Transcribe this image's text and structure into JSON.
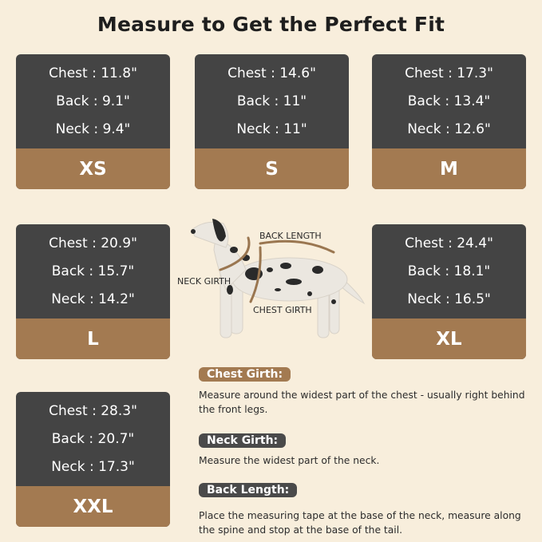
{
  "title": "Measure to Get the Perfect Fit",
  "sizes": [
    {
      "size": "XS",
      "chest": "Chest : 11.8\"",
      "back": "Back : 9.1\"",
      "neck": "Neck : 9.4\""
    },
    {
      "size": "S",
      "chest": "Chest : 14.6\"",
      "back": "Back : 11\"",
      "neck": "Neck : 11\""
    },
    {
      "size": "M",
      "chest": "Chest : 17.3\"",
      "back": "Back : 13.4\"",
      "neck": "Neck : 12.6\""
    },
    {
      "size": "L",
      "chest": "Chest : 20.9\"",
      "back": "Back : 15.7\"",
      "neck": "Neck : 14.2\""
    },
    {
      "size": "XL",
      "chest": "Chest : 24.4\"",
      "back": "Back : 18.1\"",
      "neck": "Neck : 16.5\""
    },
    {
      "size": "XXL",
      "chest": "Chest : 28.3\"",
      "back": "Back : 20.7\"",
      "neck": "Neck : 17.3\""
    }
  ],
  "diagram": {
    "back_length": "BACK LENGTH",
    "neck_girth": "NECK GIRTH",
    "chest_girth": "CHEST GIRTH"
  },
  "instructions": [
    {
      "label": "Chest Girth:",
      "text": "Measure around the widest part of the chest - usually right behind the front legs.",
      "color": "#a37a51"
    },
    {
      "label": "Neck Girth:",
      "text": "Measure the widest part of the neck.",
      "color": "#4a4a4a"
    },
    {
      "label": "Back Length:",
      "text": "Place the measuring tape at the base of the neck, measure along the spine and stop at the base of the tail.",
      "color": "#4a4a4a"
    }
  ],
  "colors": {
    "background": "#f8eedc",
    "card": "#444444",
    "accent": "#a37a51"
  }
}
